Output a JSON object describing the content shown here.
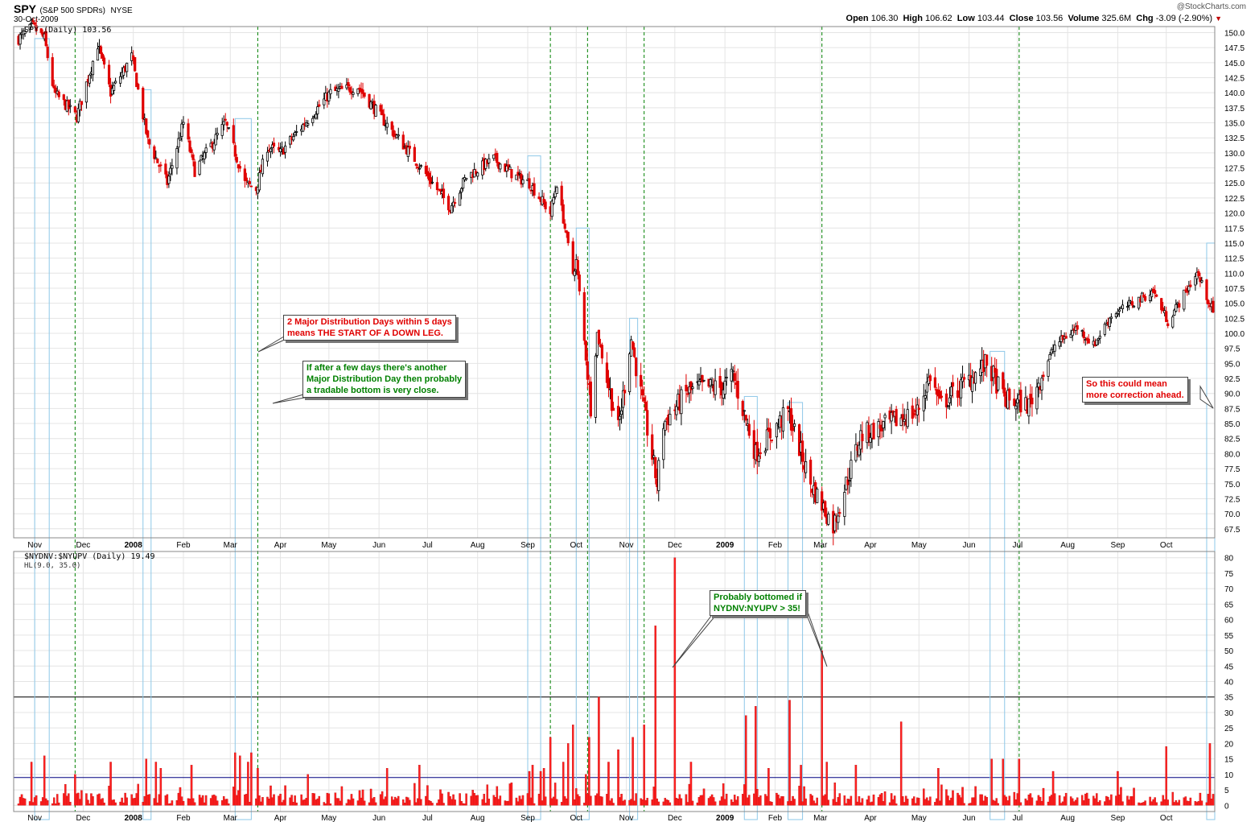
{
  "header": {
    "symbol": "SPY",
    "symbol_desc": "(S&P 500 SPDRs)",
    "exchange": "NYSE",
    "date": "30-Oct-2009",
    "watermark": "@StockCharts.com",
    "quote": {
      "open_label": "Open",
      "open": "106.30",
      "high_label": "High",
      "high": "106.62",
      "low_label": "Low",
      "low": "103.44",
      "close_label": "Close",
      "close": "103.56",
      "volume_label": "Volume",
      "volume": "325.6M",
      "chg_label": "Chg",
      "chg": "-3.09 (-2.90%)"
    }
  },
  "chart_data": [
    {
      "type": "candlestick",
      "legend": "SPY (Daily) 103.56",
      "ylim": [
        66,
        151
      ],
      "yticks": [
        67.5,
        70.0,
        72.5,
        75.0,
        77.5,
        80.0,
        82.5,
        85.0,
        87.5,
        90.0,
        92.5,
        95.0,
        97.5,
        100.0,
        102.5,
        105.0,
        107.5,
        110.0,
        112.5,
        115.0,
        117.5,
        120.0,
        122.5,
        125.0,
        127.5,
        130.0,
        132.5,
        135.0,
        137.5,
        140.0,
        142.5,
        145.0,
        147.5,
        150.0
      ],
      "xticks": [
        "Nov",
        "Dec",
        "2008",
        "Feb",
        "Mar",
        "Apr",
        "May",
        "Jun",
        "Jul",
        "Aug",
        "Sep",
        "Oct",
        "Nov",
        "Dec",
        "2009",
        "Feb",
        "Mar",
        "Apr",
        "May",
        "Jun",
        "Jul",
        "Aug",
        "Sep",
        "Oct"
      ],
      "close_path": [
        [
          "2007-10-22",
          149
        ],
        [
          "2007-10-31",
          151
        ],
        [
          "2007-11-07",
          149
        ],
        [
          "2007-11-13",
          140
        ],
        [
          "2007-11-27",
          136
        ],
        [
          "2007-12-10",
          148
        ],
        [
          "2007-12-18",
          140
        ],
        [
          "2007-12-31",
          146
        ],
        [
          "2008-01-10",
          132
        ],
        [
          "2008-01-22",
          125
        ],
        [
          "2008-02-01",
          135
        ],
        [
          "2008-02-08",
          127
        ],
        [
          "2008-02-27",
          135
        ],
        [
          "2008-03-10",
          125
        ],
        [
          "2008-03-17",
          124
        ],
        [
          "2008-03-24",
          131
        ],
        [
          "2008-04-01",
          130
        ],
        [
          "2008-04-10",
          133
        ],
        [
          "2008-05-02",
          140
        ],
        [
          "2008-05-19",
          141
        ],
        [
          "2008-06-02",
          136
        ],
        [
          "2008-06-23",
          129
        ],
        [
          "2008-07-15",
          121
        ],
        [
          "2008-07-25",
          126
        ],
        [
          "2008-08-11",
          129
        ],
        [
          "2008-08-25",
          126
        ],
        [
          "2008-09-02",
          125
        ],
        [
          "2008-09-15",
          120
        ],
        [
          "2008-09-19",
          125
        ],
        [
          "2008-09-29",
          110
        ],
        [
          "2008-10-01",
          112
        ],
        [
          "2008-10-10",
          88
        ],
        [
          "2008-10-14",
          100
        ],
        [
          "2008-10-27",
          84
        ],
        [
          "2008-11-04",
          99
        ],
        [
          "2008-11-10",
          90
        ],
        [
          "2008-11-20",
          75
        ],
        [
          "2008-11-24",
          85
        ],
        [
          "2008-12-08",
          90
        ],
        [
          "2008-12-16",
          91
        ],
        [
          "2008-12-31",
          91
        ],
        [
          "2009-01-06",
          93
        ],
        [
          "2009-01-20",
          80
        ],
        [
          "2009-02-09",
          87
        ],
        [
          "2009-02-23",
          75
        ],
        [
          "2009-03-09",
          68
        ],
        [
          "2009-03-26",
          83
        ],
        [
          "2009-04-30",
          87
        ],
        [
          "2009-05-08",
          93
        ],
        [
          "2009-05-14",
          88
        ],
        [
          "2009-06-12",
          95
        ],
        [
          "2009-06-23",
          89
        ],
        [
          "2009-07-08",
          88
        ],
        [
          "2009-07-24",
          98
        ],
        [
          "2009-08-07",
          101
        ],
        [
          "2009-08-17",
          98
        ],
        [
          "2009-08-28",
          103
        ],
        [
          "2009-09-23",
          107
        ],
        [
          "2009-10-02",
          102
        ],
        [
          "2009-10-20",
          110
        ],
        [
          "2009-10-30",
          103.56
        ]
      ],
      "annotations": [
        "2 Major Distribution Days within 5 days",
        "means THE START OF A DOWN LEG.",
        "If after a few days there's another",
        "Major Distribution Day then probably",
        "a tradable bottom is very close.",
        "So this could mean",
        "more correction ahead."
      ]
    },
    {
      "type": "bar",
      "legend": "$NYDNV:$NYUPV (Daily) 19.49",
      "legend2": "HL(9.0, 35.0)",
      "ylim": [
        -2,
        82
      ],
      "yticks": [
        0,
        5,
        10,
        15,
        20,
        25,
        30,
        35,
        40,
        45,
        50,
        55,
        60,
        65,
        70,
        75,
        80
      ],
      "hlines": [
        9,
        35
      ],
      "spikes": [
        [
          "2007-10-30",
          14
        ],
        [
          "2007-11-07",
          16
        ],
        [
          "2007-11-26",
          10
        ],
        [
          "2007-12-18",
          14
        ],
        [
          "2008-01-09",
          15
        ],
        [
          "2008-01-15",
          14
        ],
        [
          "2008-01-18",
          12
        ],
        [
          "2008-02-06",
          13
        ],
        [
          "2008-03-04",
          17
        ],
        [
          "2008-03-07",
          16
        ],
        [
          "2008-03-12",
          14
        ],
        [
          "2008-03-14",
          17
        ],
        [
          "2008-03-18",
          12
        ],
        [
          "2008-04-18",
          10
        ],
        [
          "2008-06-06",
          12
        ],
        [
          "2008-06-26",
          13
        ],
        [
          "2008-09-02",
          11
        ],
        [
          "2008-09-04",
          13
        ],
        [
          "2008-09-09",
          11
        ],
        [
          "2008-09-11",
          12
        ],
        [
          "2008-09-15",
          22
        ],
        [
          "2008-09-23",
          14
        ],
        [
          "2008-09-26",
          20
        ],
        [
          "2008-09-29",
          26
        ],
        [
          "2008-10-07",
          10
        ],
        [
          "2008-10-09",
          22
        ],
        [
          "2008-10-15",
          35
        ],
        [
          "2008-10-21",
          14
        ],
        [
          "2008-10-27",
          18
        ],
        [
          "2008-11-05",
          22
        ],
        [
          "2008-11-12",
          26
        ],
        [
          "2008-11-19",
          58
        ],
        [
          "2008-12-01",
          80
        ],
        [
          "2008-12-11",
          14
        ],
        [
          "2009-01-14",
          29
        ],
        [
          "2009-01-20",
          32
        ],
        [
          "2009-01-28",
          12
        ],
        [
          "2009-02-10",
          34
        ],
        [
          "2009-02-17",
          13
        ],
        [
          "2009-03-02",
          50
        ],
        [
          "2009-03-05",
          14
        ],
        [
          "2009-03-23",
          13
        ],
        [
          "2009-04-20",
          27
        ],
        [
          "2009-05-13",
          12
        ],
        [
          "2009-06-15",
          15
        ],
        [
          "2009-06-22",
          15
        ],
        [
          "2009-07-02",
          15
        ],
        [
          "2009-07-23",
          11
        ],
        [
          "2009-09-01",
          11
        ],
        [
          "2009-10-01",
          19
        ],
        [
          "2009-10-28",
          20
        ]
      ],
      "annotation": [
        "Probably bottomed if",
        "NYDNV:NYUPV > 35!"
      ]
    }
  ],
  "markers": {
    "distribution_days": [
      "2007-11-26",
      "2008-03-18",
      "2008-09-15",
      "2008-10-08",
      "2008-11-12",
      "2009-03-02",
      "2009-07-02"
    ],
    "boxes": [
      [
        "2007-11-02",
        "2007-11-09",
        149
      ],
      [
        "2008-01-08",
        "2008-01-11",
        140.5
      ],
      [
        "2008-03-05",
        "2008-03-13",
        135.7
      ],
      [
        "2008-09-02",
        "2008-09-08",
        129.5
      ],
      [
        "2008-10-02",
        "2008-10-08",
        117.5
      ],
      [
        "2008-11-04",
        "2008-11-07",
        102.5
      ],
      [
        "2009-01-14",
        "2009-01-20",
        89.5
      ],
      [
        "2009-02-10",
        "2009-02-17",
        88.5
      ],
      [
        "2009-06-15",
        "2009-06-22",
        97
      ],
      [
        "2009-10-27",
        "2009-10-30",
        115
      ]
    ]
  }
}
